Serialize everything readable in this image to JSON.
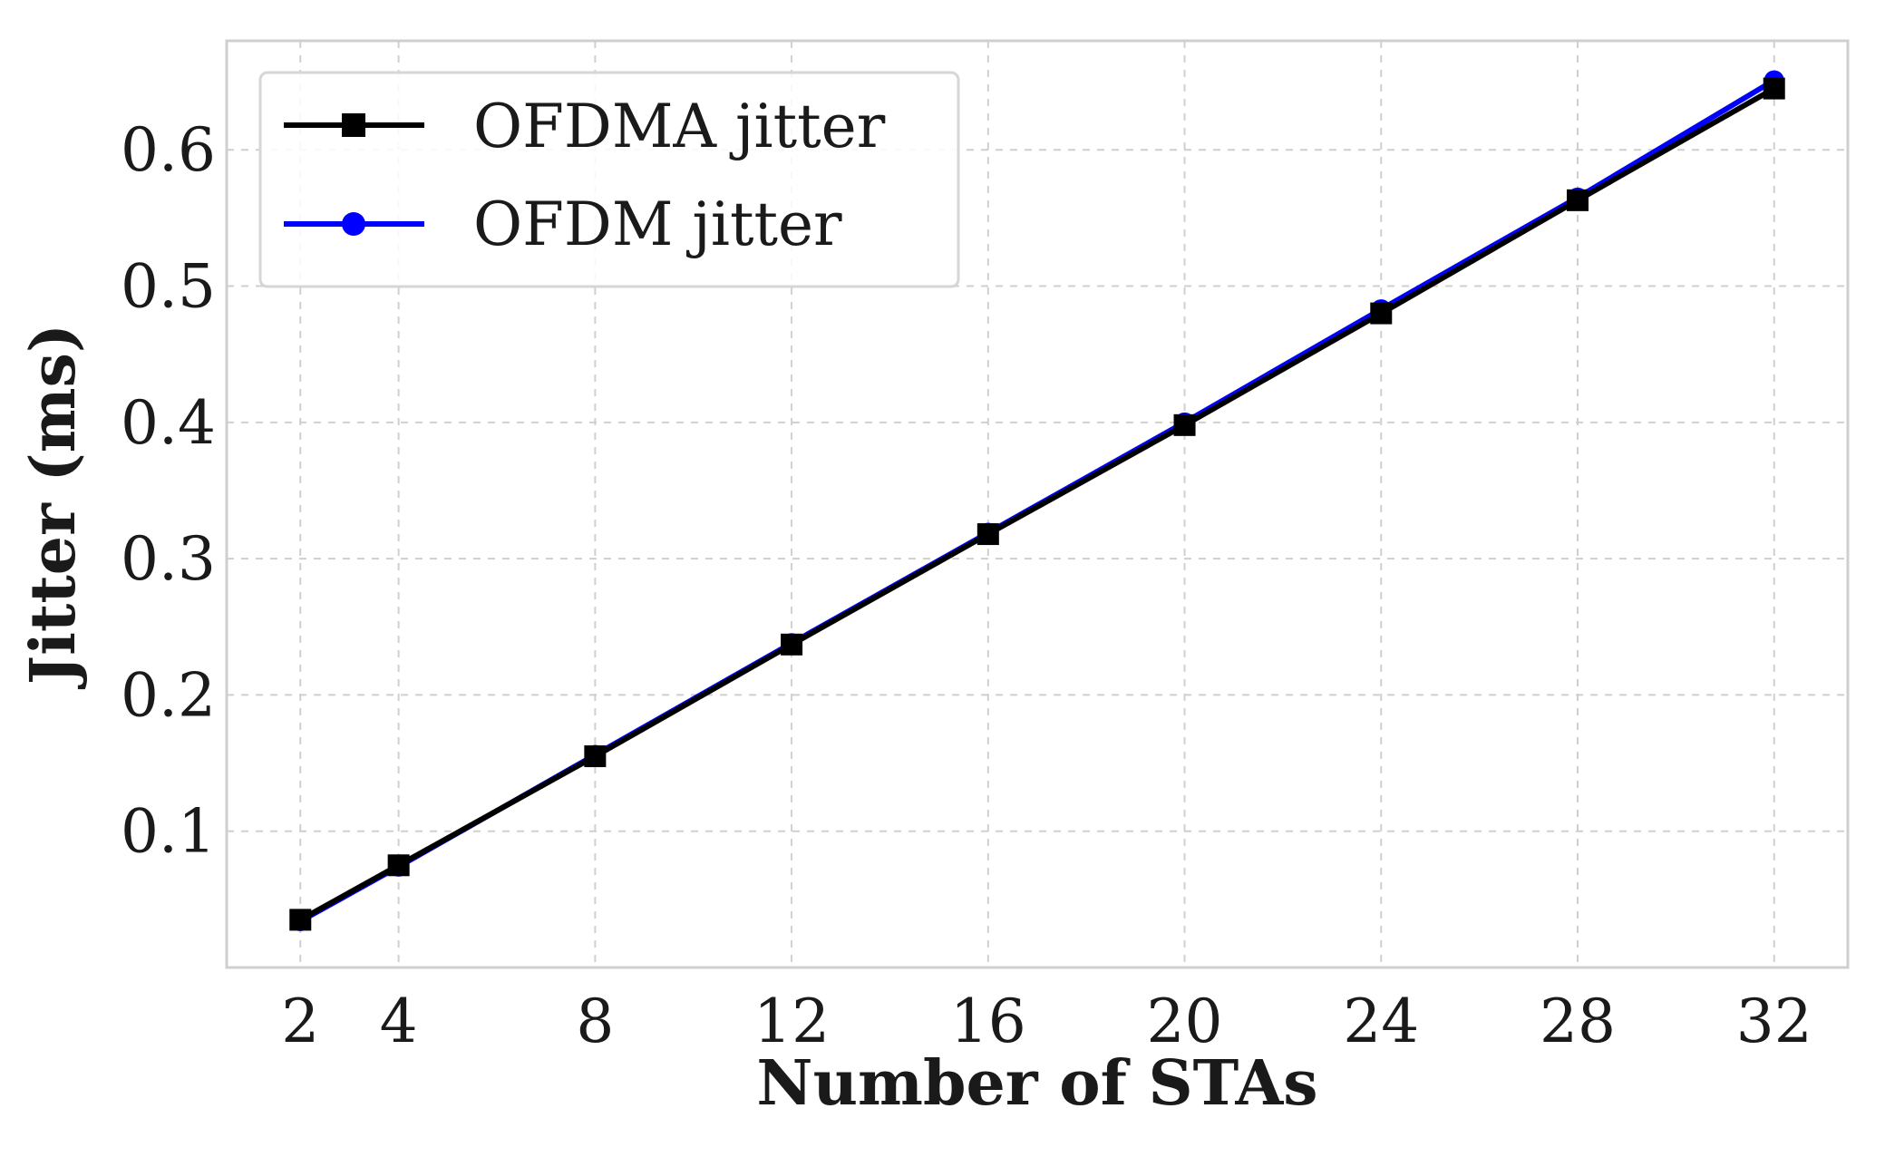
{
  "chart_data": {
    "type": "line",
    "xlabel": "Number of STAs",
    "ylabel": "Jitter (ms)",
    "x": [
      2,
      4,
      8,
      12,
      16,
      20,
      24,
      28,
      32
    ],
    "xticks": [
      "2",
      "4",
      "8",
      "12",
      "16",
      "20",
      "24",
      "28",
      "32"
    ],
    "yticks": [
      "0.1",
      "0.2",
      "0.3",
      "0.4",
      "0.5",
      "0.6"
    ],
    "xlim": [
      0.5,
      33.5
    ],
    "ylim": [
      0.0,
      0.68
    ],
    "grid": true,
    "legend_position": "upper-left",
    "series": [
      {
        "name": "OFDMA jitter",
        "color": "#000000",
        "marker": "square",
        "values": [
          0.035,
          0.075,
          0.155,
          0.237,
          0.318,
          0.398,
          0.48,
          0.563,
          0.645
        ]
      },
      {
        "name": "OFDM jitter",
        "color": "#0000ff",
        "marker": "circle",
        "values": [
          0.034,
          0.074,
          0.156,
          0.238,
          0.319,
          0.4,
          0.483,
          0.565,
          0.651
        ]
      }
    ]
  }
}
